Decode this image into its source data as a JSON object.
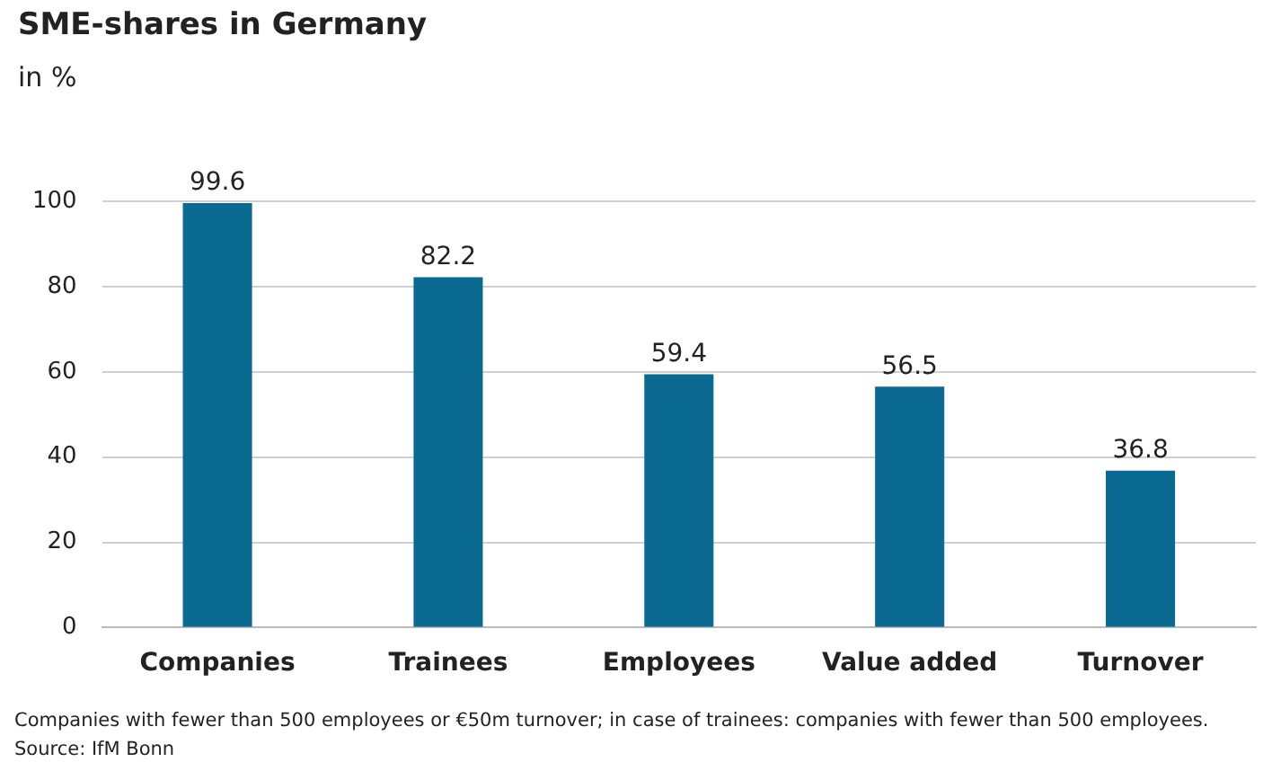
{
  "chart_data": {
    "type": "bar",
    "title": "SME-shares in Germany",
    "subtitle": "in %",
    "categories": [
      "Companies",
      "Trainees",
      "Employees",
      "Value added",
      "Turnover"
    ],
    "values": [
      99.6,
      82.2,
      59.4,
      56.5,
      36.8
    ],
    "color": "#0b6a92",
    "ylim": [
      0,
      100
    ],
    "yticks": [
      0,
      20,
      40,
      60,
      80,
      100
    ],
    "grid": "y",
    "data_labels": true,
    "legend": false,
    "annotations": [
      "Companies with fewer than 500 employees or €50m turnover; in case of trainees: companies with fewer than 500 employees.",
      "Source: IfM Bonn"
    ]
  }
}
